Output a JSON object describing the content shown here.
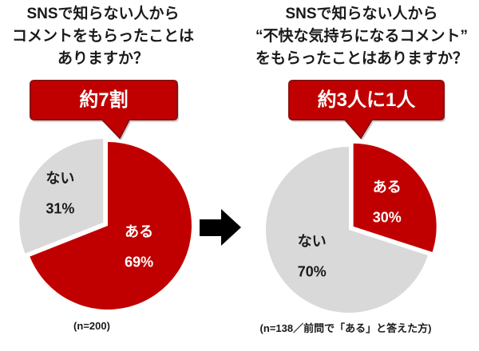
{
  "colors": {
    "accent": "#c00000",
    "accent_border": "#8b1010",
    "neutral": "#d9d9d9",
    "text": "#1a1a1a",
    "arrow": "#000000"
  },
  "chart_data": [
    {
      "type": "pie",
      "title_lines": [
        "SNSで知らない人から",
        "コメントをもらったことは",
        "ありますか？"
      ],
      "annotation": "約7割",
      "unit": "%",
      "slices": [
        {
          "label": "ある",
          "value": 69,
          "color": "#c00000"
        },
        {
          "label": "ない",
          "value": 31,
          "color": "#d9d9d9"
        }
      ],
      "note": "(n=200)"
    },
    {
      "type": "pie",
      "title_lines": [
        "SNSで知らない人から",
        "“不快な気持ちになるコメント”",
        "をもらったことはありますか？"
      ],
      "annotation": "約3人に1人",
      "unit": "%",
      "slices": [
        {
          "label": "ある",
          "value": 30,
          "color": "#c00000"
        },
        {
          "label": "ない",
          "value": 70,
          "color": "#d9d9d9"
        }
      ],
      "note": "(n=138／前問で「ある」と答えた方)"
    }
  ]
}
